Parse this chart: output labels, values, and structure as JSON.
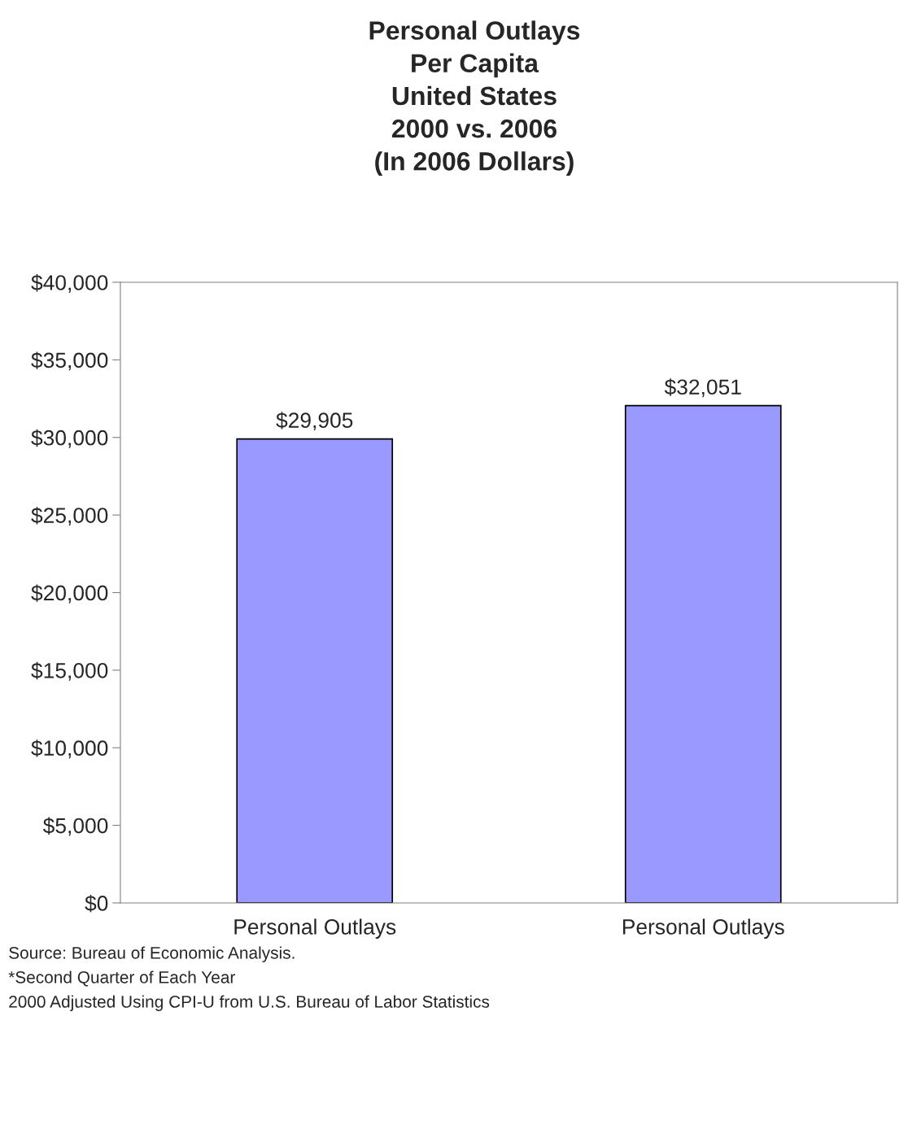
{
  "chart_data": {
    "type": "bar",
    "title": "Personal Outlays\nPer Capita\nUnited States\n2000 vs. 2006\n(In 2006 Dollars)",
    "categories": [
      "Personal Outlays",
      "Personal Outlays"
    ],
    "values": [
      29905,
      32051
    ],
    "color": "#9999ff",
    "value_labels": [
      "$29,905",
      "$32,051"
    ],
    "ylim": [
      0,
      40000
    ],
    "yticks": [
      {
        "value": 0,
        "label": "$0"
      },
      {
        "value": 5000,
        "label": "$5,000"
      },
      {
        "value": 10000,
        "label": "$10,000"
      },
      {
        "value": 15000,
        "label": "$15,000"
      },
      {
        "value": 20000,
        "label": "$20,000"
      },
      {
        "value": 25000,
        "label": "$25,000"
      },
      {
        "value": 30000,
        "label": "$30,000"
      },
      {
        "value": 35000,
        "label": "$35,000"
      },
      {
        "value": 40000,
        "label": "$40,000"
      }
    ],
    "grid": false,
    "legend": false,
    "annotations": [
      "Source: Bureau of Economic Analysis.",
      "*Second Quarter of Each Year",
      "2000 Adjusted Using CPI-U from U.S. Bureau of Labor Statistics"
    ]
  }
}
